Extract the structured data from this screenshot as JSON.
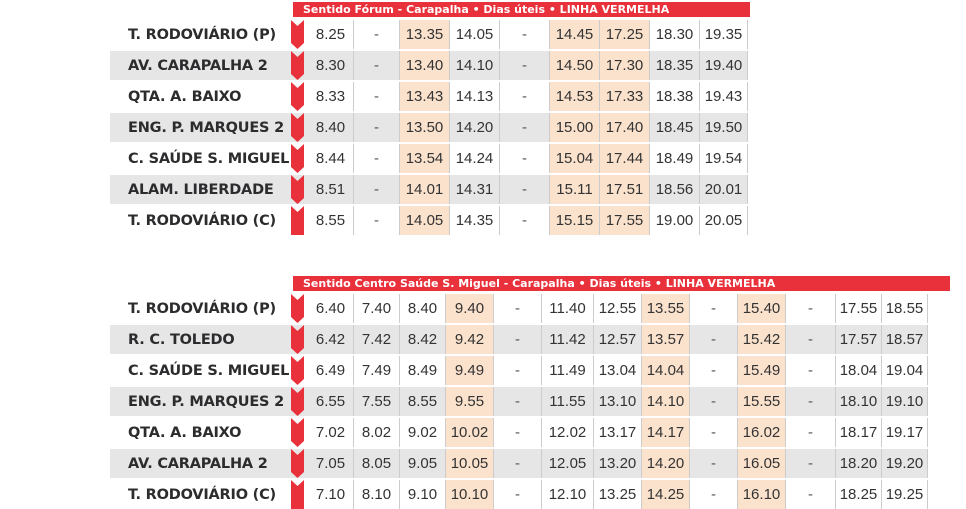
{
  "accent_color": "#e8313a",
  "peach_color": "#fbe2cd",
  "row_shade_color": "#e6e6e7",
  "timetables": [
    {
      "header": "Sentido Fórum - Carapalha • Dias úteis • LINHA VERMELHA",
      "columns": [
        {
          "w": 46,
          "peach": false
        },
        {
          "w": 46,
          "peach": false
        },
        {
          "w": 50,
          "peach": true
        },
        {
          "w": 50,
          "peach": false
        },
        {
          "w": 50,
          "peach": false
        },
        {
          "w": 50,
          "peach": true
        },
        {
          "w": 50,
          "peach": true
        },
        {
          "w": 50,
          "peach": false
        },
        {
          "w": 48,
          "peach": false
        }
      ],
      "rows": [
        {
          "stop": "T. RODOVIÁRIO (P)",
          "times": [
            "8.25",
            "-",
            "13.35",
            "14.05",
            "-",
            "14.45",
            "17.25",
            "18.30",
            "19.35"
          ]
        },
        {
          "stop": "AV. CARAPALHA 2",
          "times": [
            "8.30",
            "-",
            "13.40",
            "14.10",
            "-",
            "14.50",
            "17.30",
            "18.35",
            "19.40"
          ]
        },
        {
          "stop": "QTA. A. BAIXO",
          "times": [
            "8.33",
            "-",
            "13.43",
            "14.13",
            "-",
            "14.53",
            "17.33",
            "18.38",
            "19.43"
          ]
        },
        {
          "stop": "ENG. P.  MARQUES 2",
          "times": [
            "8.40",
            "-",
            "13.50",
            "14.20",
            "-",
            "15.00",
            "17.40",
            "18.45",
            "19.50"
          ]
        },
        {
          "stop": "C. SAÚDE S. MIGUEL",
          "times": [
            "8.44",
            "-",
            "13.54",
            "14.24",
            "-",
            "15.04",
            "17.44",
            "18.49",
            "19.54"
          ]
        },
        {
          "stop": "ALAM. LIBERDADE",
          "times": [
            "8.51",
            "-",
            "14.01",
            "14.31",
            "-",
            "15.11",
            "17.51",
            "18.56",
            "20.01"
          ]
        },
        {
          "stop": "T. RODOVIÁRIO (C)",
          "times": [
            "8.55",
            "-",
            "14.05",
            "14.35",
            "-",
            "15.15",
            "17.55",
            "19.00",
            "20.05"
          ]
        }
      ]
    },
    {
      "header": "Sentido Centro Saúde S. Miguel - Carapalha • Dias úteis • LINHA VERMELHA",
      "columns": [
        {
          "w": 46,
          "peach": false
        },
        {
          "w": 46,
          "peach": false
        },
        {
          "w": 46,
          "peach": false
        },
        {
          "w": 48,
          "peach": true
        },
        {
          "w": 48,
          "peach": false
        },
        {
          "w": 52,
          "peach": false
        },
        {
          "w": 48,
          "peach": false
        },
        {
          "w": 48,
          "peach": true
        },
        {
          "w": 48,
          "peach": false
        },
        {
          "w": 48,
          "peach": true
        },
        {
          "w": 50,
          "peach": false
        },
        {
          "w": 46,
          "peach": false
        },
        {
          "w": 46,
          "peach": false
        }
      ],
      "rows": [
        {
          "stop": "T. RODOVIÁRIO (P)",
          "times": [
            "6.40",
            "7.40",
            "8.40",
            "9.40",
            "-",
            "11.40",
            "12.55",
            "13.55",
            "-",
            "15.40",
            "-",
            "17.55",
            "18.55"
          ]
        },
        {
          "stop": "R. C. TOLEDO",
          "times": [
            "6.42",
            "7.42",
            "8.42",
            "9.42",
            "-",
            "11.42",
            "12.57",
            "13.57",
            "-",
            "15.42",
            "-",
            "17.57",
            "18.57"
          ]
        },
        {
          "stop": "C. SAÚDE S. MIGUEL",
          "times": [
            "6.49",
            "7.49",
            "8.49",
            "9.49",
            "-",
            "11.49",
            "13.04",
            "14.04",
            "-",
            "15.49",
            "-",
            "18.04",
            "19.04"
          ]
        },
        {
          "stop": "ENG. P.  MARQUES 2",
          "times": [
            "6.55",
            "7.55",
            "8.55",
            "9.55",
            "-",
            "11.55",
            "13.10",
            "14.10",
            "-",
            "15.55",
            "-",
            "18.10",
            "19.10"
          ]
        },
        {
          "stop": "QTA. A. BAIXO",
          "times": [
            "7.02",
            "8.02",
            "9.02",
            "10.02",
            "-",
            "12.02",
            "13.17",
            "14.17",
            "-",
            "16.02",
            "-",
            "18.17",
            "19.17"
          ]
        },
        {
          "stop": "AV. CARAPALHA 2",
          "times": [
            "7.05",
            "8.05",
            "9.05",
            "10.05",
            "-",
            "12.05",
            "13.20",
            "14.20",
            "-",
            "16.05",
            "-",
            "18.20",
            "19.20"
          ]
        },
        {
          "stop": "T. RODOVIÁRIO (C)",
          "times": [
            "7.10",
            "8.10",
            "9.10",
            "10.10",
            "-",
            "12.10",
            "13.25",
            "14.25",
            "-",
            "16.10",
            "-",
            "18.25",
            "19.25"
          ]
        }
      ]
    }
  ]
}
